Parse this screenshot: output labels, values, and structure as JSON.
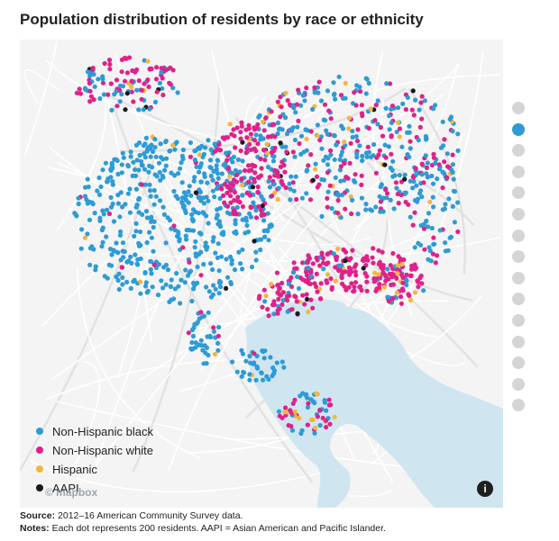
{
  "title": "Population distribution of residents by race or ethnicity",
  "legend": [
    {
      "label": "Non-Hispanic black",
      "color": "#2e9bd6"
    },
    {
      "label": "Non-Hispanic white",
      "color": "#e0218a"
    },
    {
      "label": "Hispanic",
      "color": "#f4b63f"
    },
    {
      "label": "AAPI",
      "color": "#1a1a1a"
    }
  ],
  "watermark": "© mapbox",
  "info_icon": "info-icon",
  "pager": {
    "count": 15,
    "active_index": 1
  },
  "footer": {
    "source_label": "Source:",
    "source_text": "2012–16 American Community Survey data.",
    "notes_label": "Notes:",
    "notes_text": "Each dot represents 200 residents. AAPI = Asian American and Pacific Islander."
  },
  "colors": {
    "water": "#cfe6f1",
    "land": "#f4f4f4",
    "roads": "#ffffff"
  }
}
